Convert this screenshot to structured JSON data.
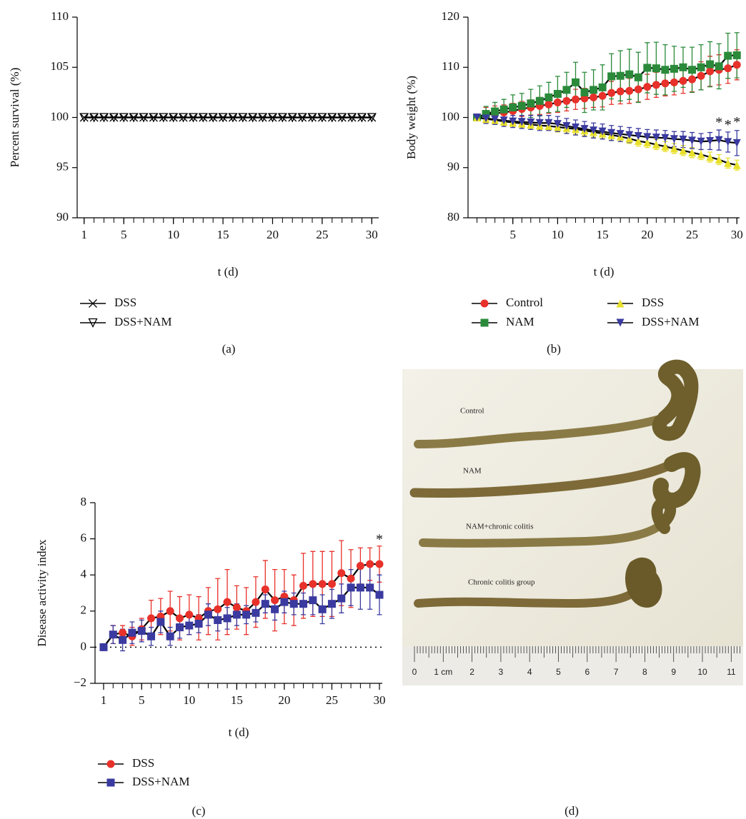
{
  "chart_data": [
    {
      "type": "line",
      "ylabel": "Percent survival (%)",
      "xlabel": "t (d)",
      "caption": "(a)",
      "x": [
        1,
        2,
        3,
        4,
        5,
        6,
        7,
        8,
        9,
        10,
        11,
        12,
        13,
        14,
        15,
        16,
        17,
        18,
        19,
        20,
        21,
        22,
        23,
        24,
        25,
        26,
        27,
        28,
        29,
        30
      ],
      "xlim": [
        0.3,
        30.7
      ],
      "xticks": [
        1,
        5,
        10,
        15,
        20,
        25,
        30
      ],
      "ylim": [
        90,
        110
      ],
      "yticks": [
        90,
        95,
        100,
        105,
        110
      ],
      "line_color": "#000000",
      "series": [
        {
          "name": "DSS",
          "color": "#000000",
          "marker": "x",
          "values": [
            100,
            100,
            100,
            100,
            100,
            100,
            100,
            100,
            100,
            100,
            100,
            100,
            100,
            100,
            100,
            100,
            100,
            100,
            100,
            100,
            100,
            100,
            100,
            100,
            100,
            100,
            100,
            100,
            100,
            100
          ]
        },
        {
          "name": "DSS+NAM",
          "color": "#000000",
          "marker": "triangle-down-open",
          "values": [
            100,
            100,
            100,
            100,
            100,
            100,
            100,
            100,
            100,
            100,
            100,
            100,
            100,
            100,
            100,
            100,
            100,
            100,
            100,
            100,
            100,
            100,
            100,
            100,
            100,
            100,
            100,
            100,
            100,
            100
          ]
        }
      ]
    },
    {
      "type": "line",
      "ylabel": "Body weight (%)",
      "xlabel": "t (d)",
      "caption": "(b)",
      "x": [
        1,
        2,
        3,
        4,
        5,
        6,
        7,
        8,
        9,
        10,
        11,
        12,
        13,
        14,
        15,
        16,
        17,
        18,
        19,
        20,
        21,
        22,
        23,
        24,
        25,
        26,
        27,
        28,
        29,
        30
      ],
      "xlim": [
        0,
        30.3
      ],
      "xticks": [
        5,
        10,
        15,
        20,
        25,
        30
      ],
      "ylim": [
        80,
        120
      ],
      "yticks": [
        80,
        90,
        100,
        110,
        120
      ],
      "line_color": "#000000",
      "series": [
        {
          "name": "Control",
          "color": "#e8312a",
          "marker": "circle",
          "values": [
            100,
            100.5,
            100.8,
            101,
            101.3,
            101.7,
            102,
            102.3,
            102.6,
            103,
            103.3,
            103.6,
            103.8,
            104,
            104.3,
            104.9,
            105.2,
            105.3,
            105.6,
            106.1,
            106.5,
            106.8,
            107,
            107.3,
            107.6,
            108.3,
            109.2,
            109.5,
            109.8,
            110.5
          ],
          "errors": [
            0.3,
            1.5,
            1.5,
            1.5,
            1.5,
            1.5,
            1.5,
            1.7,
            1.8,
            2,
            2,
            2,
            2,
            2,
            2.2,
            2.3,
            2.5,
            2.5,
            2.5,
            2.5,
            2.5,
            2.5,
            2.5,
            2.5,
            2.5,
            2.8,
            3,
            3,
            3,
            3
          ]
        },
        {
          "name": "NAM",
          "color": "#2a8a3a",
          "marker": "square",
          "values": [
            100,
            100.7,
            101.2,
            101.6,
            102,
            102.3,
            102.8,
            103.3,
            104,
            104.7,
            105.5,
            107,
            105,
            105.5,
            106,
            108.2,
            108.3,
            108.6,
            108,
            109.9,
            109.8,
            109.5,
            109.7,
            110,
            109.5,
            110,
            110.6,
            110.2,
            112.3,
            112.4
          ],
          "errors": [
            0.3,
            1.5,
            1.8,
            2,
            2.5,
            2.5,
            2.8,
            3,
            3,
            3.5,
            3.5,
            4,
            4,
            4,
            4.5,
            4.5,
            5,
            5,
            5,
            5,
            5.2,
            5,
            4.5,
            4,
            4.5,
            4.5,
            4.5,
            4.5,
            4.5,
            4.5
          ]
        },
        {
          "name": "DSS",
          "color": "#e8e02a",
          "marker": "triangle-up",
          "values": [
            100,
            99.7,
            99.5,
            99.2,
            99,
            98.8,
            98.6,
            98.4,
            98.3,
            98.1,
            97.9,
            97.7,
            97.4,
            97.1,
            96.8,
            96.5,
            96.2,
            95.8,
            95.3,
            95,
            94.6,
            94.2,
            93.8,
            93.4,
            93,
            92.6,
            92.1,
            91.6,
            90.9,
            90.5
          ],
          "errors": [
            0.3,
            0.8,
            0.8,
            0.8,
            0.8,
            0.8,
            0.8,
            0.8,
            0.8,
            1,
            1,
            1,
            1,
            1,
            1,
            1,
            1,
            1,
            1,
            1,
            1,
            1,
            1,
            1,
            1,
            1,
            1,
            1,
            1,
            1
          ]
        },
        {
          "name": "DSS+NAM",
          "color": "#3a3aa0",
          "marker": "triangle-down",
          "values": [
            100,
            99.8,
            99.6,
            99.4,
            99.2,
            99.1,
            99,
            98.9,
            98.9,
            98.7,
            98.3,
            98,
            97.7,
            97.4,
            97.2,
            96.9,
            96.7,
            96.5,
            96.3,
            96.1,
            96,
            95.9,
            95.7,
            95.6,
            95.4,
            95.2,
            95.3,
            95.5,
            95.1,
            94.9
          ],
          "errors": [
            0.3,
            1,
            1,
            1.2,
            1.2,
            1.3,
            1.4,
            1.5,
            1.5,
            1.5,
            1.5,
            1.5,
            1.5,
            1.5,
            1.5,
            1.5,
            1.5,
            1.5,
            1.5,
            1.5,
            1.5,
            1.5,
            1.5,
            1.6,
            1.6,
            1.6,
            1.7,
            2,
            2,
            2.5
          ]
        }
      ],
      "annotations": [
        {
          "text": "*",
          "x": 28,
          "y": 98.8
        },
        {
          "text": "*",
          "x": 29,
          "y": 98.3
        },
        {
          "text": "*",
          "x": 30,
          "y": 98.9
        }
      ]
    },
    {
      "type": "line",
      "ylabel": "Disease activity index",
      "xlabel": "t (d)",
      "caption": "(c)",
      "x": [
        1,
        2,
        3,
        4,
        5,
        6,
        7,
        8,
        9,
        10,
        11,
        12,
        13,
        14,
        15,
        16,
        17,
        18,
        19,
        20,
        21,
        22,
        23,
        24,
        25,
        26,
        27,
        28,
        29,
        30
      ],
      "xlim": [
        0.1,
        30.3
      ],
      "xticks": [
        1,
        5,
        10,
        15,
        20,
        25,
        30
      ],
      "ylim": [
        -2,
        8
      ],
      "yticks": [
        {
          "value": -2,
          "label": "−2"
        },
        0,
        2,
        4,
        6,
        8
      ],
      "line_color": "#000000",
      "zero_line": true,
      "series": [
        {
          "name": "DSS",
          "color": "#e8312a",
          "marker": "circle",
          "values": [
            0,
            0.7,
            0.8,
            0.6,
            1.0,
            1.6,
            1.7,
            2.0,
            1.6,
            1.8,
            1.6,
            2.0,
            2.1,
            2.5,
            2.2,
            2.0,
            2.5,
            3.2,
            2.6,
            2.8,
            2.6,
            3.4,
            3.5,
            3.5,
            3.5,
            4.1,
            3.8,
            4.5,
            4.6,
            4.6
          ],
          "errors": [
            0,
            0.5,
            0.4,
            0.5,
            0.6,
            1,
            1,
            1.1,
            1.2,
            1.1,
            1.2,
            1.3,
            1.7,
            1.8,
            1.2,
            1.3,
            1.4,
            1.6,
            1.7,
            1.5,
            1.4,
            1.8,
            1.8,
            1.8,
            1.8,
            1.8,
            1.6,
            1.0,
            0.9,
            1.0
          ]
        },
        {
          "name": "DSS+NAM",
          "color": "#3a3aa0",
          "marker": "square",
          "values": [
            0,
            0.7,
            0.4,
            0.8,
            0.9,
            0.6,
            1.4,
            0.6,
            1.1,
            1.2,
            1.3,
            1.8,
            1.5,
            1.6,
            1.8,
            1.8,
            1.9,
            2.4,
            2.1,
            2.5,
            2.4,
            2.4,
            2.6,
            2.1,
            2.4,
            2.7,
            3.3,
            3.3,
            3.3,
            2.9
          ],
          "errors": [
            0,
            0.5,
            0.6,
            0.6,
            0.6,
            0.5,
            0.6,
            0.5,
            0.6,
            0.5,
            0.5,
            0.6,
            0.6,
            0.6,
            0.6,
            0.5,
            0.5,
            0.5,
            0.6,
            0.6,
            0.6,
            0.6,
            0.8,
            0.8,
            0.8,
            0.8,
            1,
            1.2,
            1.2,
            1.1
          ]
        }
      ],
      "annotations": [
        {
          "text": "*",
          "x": 30,
          "y": 5.9
        }
      ]
    }
  ],
  "photo": {
    "caption": "(d)",
    "labels": [
      "Control",
      "NAM",
      "NAM+chronic colitis",
      "Chronic colitis group"
    ],
    "ruler_labels": [
      "0",
      "1 cm",
      "2",
      "3",
      "4",
      "5",
      "6",
      "7",
      "8",
      "9",
      "10",
      "11"
    ]
  }
}
